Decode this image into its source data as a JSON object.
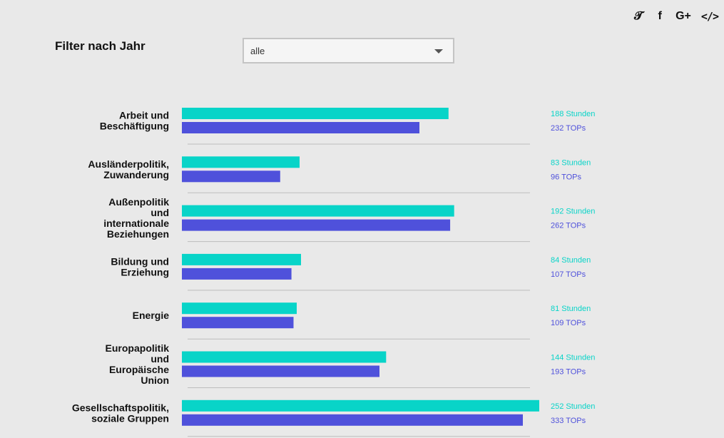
{
  "share": {
    "twitter_icon": "twitter-icon",
    "facebook_icon": "facebook-icon",
    "googleplus_icon": "google-plus-icon",
    "embed_icon": "embed-code-icon"
  },
  "filter": {
    "label": "Filter nach Jahr",
    "selected": "alle"
  },
  "colors": {
    "stunden": "#08d4c8",
    "tops": "#4f51db",
    "separator": "#bdbdbd"
  },
  "chart_data": {
    "type": "bar",
    "orientation": "horizontal",
    "grid": false,
    "categories": [
      [
        "Arbeit und",
        "Beschäftigung"
      ],
      [
        "Ausländerpolitik,",
        "Zuwanderung"
      ],
      [
        "Außenpolitik",
        "und",
        "internationale",
        "Beziehungen"
      ],
      [
        "Bildung und",
        "Erziehung"
      ],
      [
        "Energie"
      ],
      [
        "Europapolitik",
        "und",
        "Europäische",
        "Union"
      ],
      [
        "Gesellschaftspolitik,",
        "soziale Gruppen"
      ]
    ],
    "series": [
      {
        "name": "Stunden",
        "unit": "Stunden",
        "color": "#08d4c8",
        "values": [
          188,
          83,
          192,
          84,
          81,
          144,
          252
        ]
      },
      {
        "name": "TOPs",
        "unit": "TOPs",
        "color": "#4f51db",
        "values": [
          232,
          96,
          262,
          107,
          109,
          193,
          333
        ]
      }
    ]
  }
}
